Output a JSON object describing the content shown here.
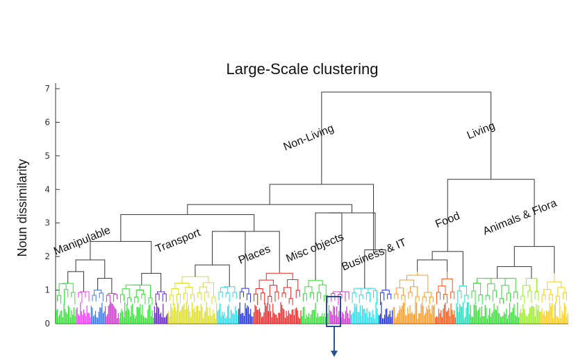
{
  "chart_data": {
    "type": "dendrogram",
    "title": "Large-Scale clustering",
    "ylabel": "Noun dissimilarity",
    "ylim": [
      0,
      7.3
    ],
    "yticks": [
      0,
      1,
      2,
      3,
      4,
      5,
      6,
      7
    ],
    "annotations": [
      "Non-Living",
      "Living"
    ],
    "clusters": [
      {
        "label": "Manipulable",
        "height": 2.45,
        "color_groups": [
          {
            "color": "#33dd33",
            "n": 6,
            "height": 1.2
          },
          {
            "color": "#ff33ff",
            "n": 4,
            "height": 0.95
          },
          {
            "color": "#3377ff",
            "n": 4,
            "height": 1.0
          },
          {
            "color": "#cc33cc",
            "n": 4,
            "height": 0.9
          },
          {
            "color": "#33dd33",
            "n": 10,
            "height": 1.15
          },
          {
            "color": "#6622cc",
            "n": 4,
            "height": 0.95
          }
        ]
      },
      {
        "label": "Transport",
        "height": 2.75,
        "color_groups": [
          {
            "color": "#dddd22",
            "n": 14,
            "height": 1.4
          },
          {
            "color": "#22ddee",
            "n": 6,
            "height": 1.1
          },
          {
            "color": "#2233dd",
            "n": 4,
            "height": 1.05
          }
        ]
      },
      {
        "label": "Places",
        "height": 1.55,
        "color_groups": [
          {
            "color": "#ee2222",
            "n": 14,
            "height": 1.55
          }
        ]
      },
      {
        "label": "Misc objects",
        "height": 3.3,
        "color_groups": [
          {
            "color": "#33dd33",
            "n": 8,
            "height": 1.3
          },
          {
            "color": "#cc33cc",
            "n": 6,
            "height": 0.95
          }
        ]
      },
      {
        "label": "Business & IT",
        "height": 2.2,
        "color_groups": [
          {
            "color": "#22ddee",
            "n": 8,
            "height": 1.05
          },
          {
            "color": "#2233dd",
            "n": 4,
            "height": 1.0
          }
        ]
      },
      {
        "label": "Food",
        "height": 2.15,
        "color_groups": [
          {
            "color": "#ff9922",
            "n": 12,
            "height": 1.55
          },
          {
            "color": "#ff5511",
            "n": 6,
            "height": 1.55
          },
          {
            "color": "#22ddbb",
            "n": 4,
            "height": 1.15
          }
        ]
      },
      {
        "label": "Animals & Flora",
        "height": 2.3,
        "color_groups": [
          {
            "color": "#33dd33",
            "n": 14,
            "height": 1.35
          },
          {
            "color": "#99ee22",
            "n": 6,
            "height": 1.35
          },
          {
            "color": "#ffcc11",
            "n": 8,
            "height": 1.5
          }
        ]
      }
    ]
  }
}
